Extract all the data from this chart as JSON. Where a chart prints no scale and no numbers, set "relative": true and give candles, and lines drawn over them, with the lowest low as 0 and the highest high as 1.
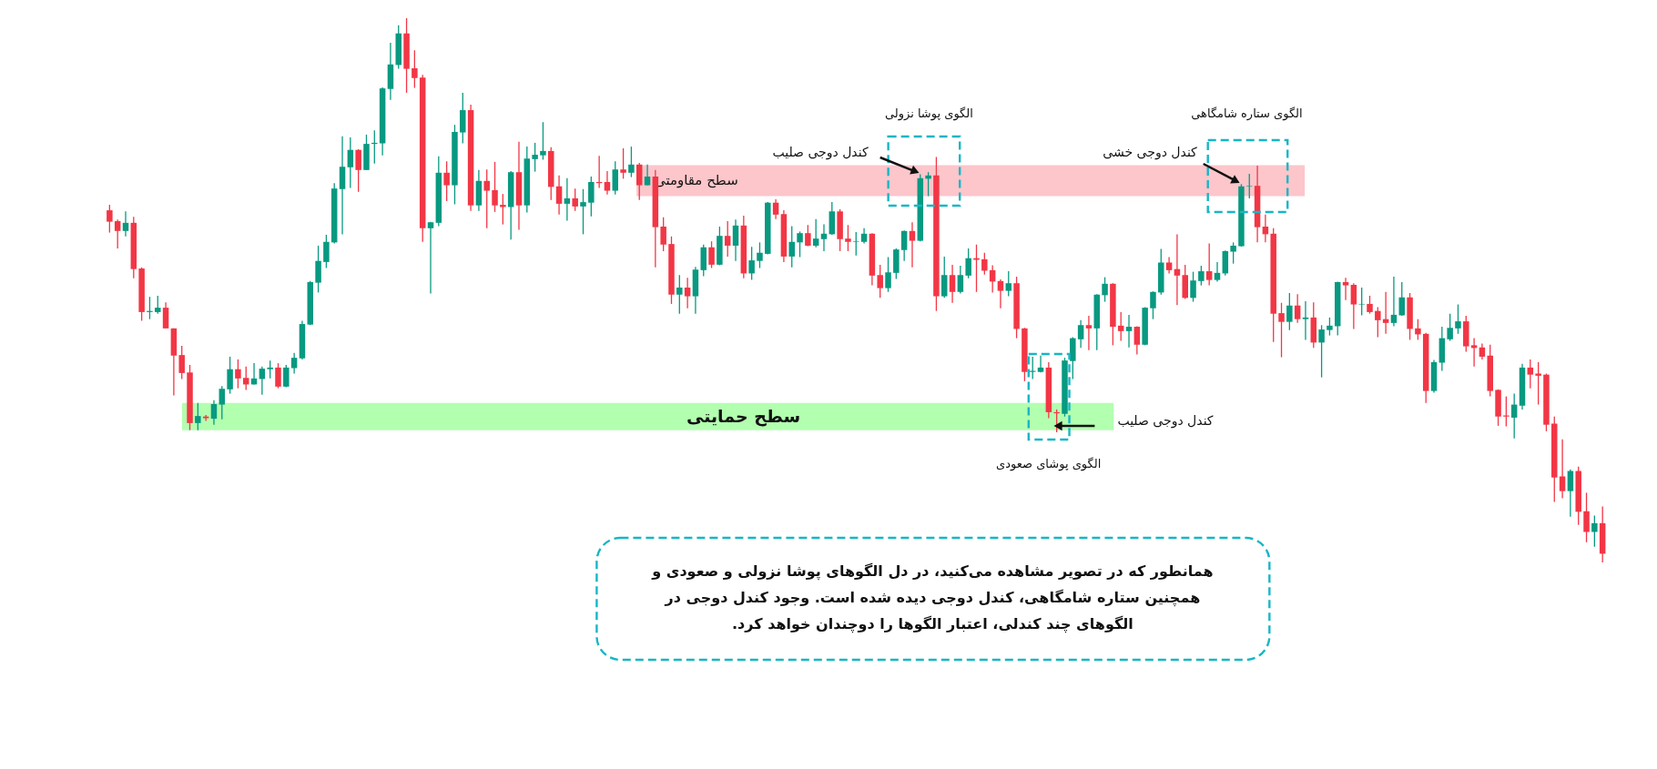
{
  "chart_data": {
    "type": "candlestick",
    "relative": true,
    "categories": [
      null,
      null,
      null,
      null,
      null,
      null,
      null,
      null,
      null,
      null,
      null,
      null,
      null,
      null,
      null,
      null,
      null,
      null,
      null,
      null,
      null,
      null,
      null,
      null,
      null,
      null,
      null,
      null,
      null,
      null,
      null,
      null,
      null,
      null,
      null,
      null,
      null,
      null,
      null,
      null,
      null,
      null,
      null,
      null,
      null,
      null,
      null,
      null,
      null,
      null,
      null,
      null,
      null,
      null,
      null,
      null,
      null,
      null,
      null,
      null,
      null,
      null,
      null,
      null,
      null,
      null,
      null,
      null,
      null,
      null,
      null,
      null,
      null,
      null,
      null,
      null,
      null,
      null,
      null,
      null,
      null,
      null,
      null,
      null,
      null,
      null,
      null,
      null,
      null,
      null,
      null,
      null,
      null,
      null,
      null,
      null,
      null,
      null,
      null,
      null,
      null,
      null,
      null,
      null,
      null,
      null,
      null,
      null,
      null,
      null,
      null,
      null,
      null,
      null,
      null,
      null,
      null,
      null,
      null,
      null,
      null,
      null,
      null,
      null,
      null,
      null,
      null,
      null,
      null,
      null,
      null,
      null,
      null,
      null,
      null,
      null,
      null,
      null,
      null,
      null,
      null,
      null,
      null,
      null,
      null,
      null,
      null,
      null,
      null,
      null,
      null,
      null,
      null,
      null,
      null,
      null,
      null,
      null,
      null,
      null,
      null,
      null,
      null,
      null,
      null,
      null,
      null,
      null,
      null,
      null,
      null,
      null,
      null,
      null,
      null,
      null,
      null,
      null,
      null,
      null,
      null,
      null,
      null,
      null,
      null,
      null,
      null
    ],
    "ohlc": [
      [
        0.647,
        0.657,
        0.606,
        0.626
      ],
      [
        0.627,
        0.63,
        0.577,
        0.609
      ],
      [
        0.609,
        0.645,
        0.599,
        0.624
      ],
      [
        0.624,
        0.635,
        0.522,
        0.539
      ],
      [
        0.54,
        0.542,
        0.444,
        0.46
      ],
      [
        0.46,
        0.488,
        0.447,
        0.462
      ],
      [
        0.46,
        0.49,
        0.457,
        0.468
      ],
      [
        0.468,
        0.478,
        0.43,
        0.43
      ],
      [
        0.43,
        0.43,
        0.307,
        0.38
      ],
      [
        0.381,
        0.398,
        0.337,
        0.348
      ],
      [
        0.349,
        0.363,
        0.243,
        0.256
      ],
      [
        0.256,
        0.293,
        0.243,
        0.269
      ],
      [
        0.268,
        0.271,
        0.26,
        0.265
      ],
      [
        0.264,
        0.298,
        0.253,
        0.291
      ],
      [
        0.29,
        0.324,
        0.263,
        0.319
      ],
      [
        0.318,
        0.378,
        0.31,
        0.355
      ],
      [
        0.355,
        0.373,
        0.32,
        0.338
      ],
      [
        0.339,
        0.36,
        0.317,
        0.327
      ],
      [
        0.327,
        0.366,
        0.327,
        0.338
      ],
      [
        0.337,
        0.36,
        0.308,
        0.356
      ],
      [
        0.355,
        0.371,
        0.338,
        0.358
      ],
      [
        0.358,
        0.366,
        0.32,
        0.323
      ],
      [
        0.323,
        0.363,
        0.322,
        0.358
      ],
      [
        0.357,
        0.385,
        0.347,
        0.376
      ],
      [
        0.375,
        0.444,
        0.373,
        0.438
      ],
      [
        0.437,
        0.517,
        0.436,
        0.515
      ],
      [
        0.514,
        0.582,
        0.496,
        0.554
      ],
      [
        0.552,
        0.602,
        0.541,
        0.589
      ],
      [
        0.588,
        0.697,
        0.586,
        0.687
      ],
      [
        0.686,
        0.783,
        0.603,
        0.727
      ],
      [
        0.726,
        0.781,
        0.688,
        0.758
      ],
      [
        0.758,
        0.759,
        0.681,
        0.721
      ],
      [
        0.721,
        0.786,
        0.721,
        0.769
      ],
      [
        0.769,
        0.794,
        0.733,
        0.771
      ],
      [
        0.77,
        0.873,
        0.748,
        0.871
      ],
      [
        0.87,
        0.955,
        0.85,
        0.915
      ],
      [
        0.914,
        0.987,
        0.907,
        0.972
      ],
      [
        0.972,
        1.0,
        0.863,
        0.907
      ],
      [
        0.908,
        0.941,
        0.872,
        0.89
      ],
      [
        0.891,
        0.896,
        0.589,
        0.614
      ],
      [
        0.614,
        0.626,
        0.494,
        0.625
      ],
      [
        0.624,
        0.746,
        0.618,
        0.716
      ],
      [
        0.716,
        0.737,
        0.664,
        0.693
      ],
      [
        0.693,
        0.804,
        0.658,
        0.791
      ],
      [
        0.79,
        0.863,
        0.77,
        0.831
      ],
      [
        0.831,
        0.841,
        0.646,
        0.656
      ],
      [
        0.656,
        0.721,
        0.646,
        0.701
      ],
      [
        0.701,
        0.722,
        0.614,
        0.683
      ],
      [
        0.684,
        0.736,
        0.644,
        0.656
      ],
      [
        0.657,
        0.677,
        0.621,
        0.653
      ],
      [
        0.653,
        0.719,
        0.593,
        0.717
      ],
      [
        0.717,
        0.773,
        0.611,
        0.656
      ],
      [
        0.656,
        0.764,
        0.643,
        0.742
      ],
      [
        0.741,
        0.771,
        0.718,
        0.749
      ],
      [
        0.748,
        0.809,
        0.74,
        0.756
      ],
      [
        0.756,
        0.763,
        0.666,
        0.69
      ],
      [
        0.691,
        0.711,
        0.639,
        0.659
      ],
      [
        0.659,
        0.706,
        0.628,
        0.669
      ],
      [
        0.669,
        0.687,
        0.646,
        0.654
      ],
      [
        0.654,
        0.686,
        0.603,
        0.662
      ],
      [
        0.661,
        0.709,
        0.636,
        0.699
      ],
      [
        0.699,
        0.747,
        0.688,
        0.697
      ],
      [
        0.699,
        0.719,
        0.676,
        0.683
      ],
      [
        0.683,
        0.737,
        0.676,
        0.722
      ],
      [
        0.722,
        0.761,
        0.705,
        0.716
      ],
      [
        0.716,
        0.764,
        0.708,
        0.731
      ],
      [
        0.731,
        0.734,
        0.666,
        0.693
      ],
      [
        0.693,
        0.731,
        0.693,
        0.709
      ],
      [
        0.709,
        0.721,
        0.542,
        0.616
      ],
      [
        0.617,
        0.634,
        0.572,
        0.584
      ],
      [
        0.585,
        0.599,
        0.475,
        0.492
      ],
      [
        0.492,
        0.528,
        0.457,
        0.505
      ],
      [
        0.505,
        0.523,
        0.467,
        0.489
      ],
      [
        0.489,
        0.543,
        0.457,
        0.538
      ],
      [
        0.537,
        0.584,
        0.526,
        0.579
      ],
      [
        0.579,
        0.59,
        0.541,
        0.547
      ],
      [
        0.547,
        0.617,
        0.546,
        0.6
      ],
      [
        0.6,
        0.627,
        0.562,
        0.582
      ],
      [
        0.582,
        0.63,
        0.554,
        0.619
      ],
      [
        0.619,
        0.637,
        0.522,
        0.531
      ],
      [
        0.531,
        0.58,
        0.519,
        0.555
      ],
      [
        0.554,
        0.588,
        0.541,
        0.569
      ],
      [
        0.567,
        0.662,
        0.566,
        0.661
      ],
      [
        0.661,
        0.667,
        0.631,
        0.639
      ],
      [
        0.64,
        0.647,
        0.552,
        0.562
      ],
      [
        0.562,
        0.618,
        0.542,
        0.589
      ],
      [
        0.588,
        0.608,
        0.561,
        0.605
      ],
      [
        0.605,
        0.62,
        0.581,
        0.582
      ],
      [
        0.582,
        0.631,
        0.579,
        0.595
      ],
      [
        0.594,
        0.621,
        0.572,
        0.604
      ],
      [
        0.603,
        0.662,
        0.602,
        0.645
      ],
      [
        0.645,
        0.649,
        0.572,
        0.594
      ],
      [
        0.595,
        0.62,
        0.572,
        0.589
      ],
      [
        0.589,
        0.607,
        0.564,
        0.59
      ],
      [
        0.589,
        0.614,
        0.586,
        0.604
      ],
      [
        0.604,
        0.605,
        0.509,
        0.527
      ],
      [
        0.528,
        0.547,
        0.486,
        0.504
      ],
      [
        0.504,
        0.561,
        0.497,
        0.533
      ],
      [
        0.532,
        0.577,
        0.521,
        0.575
      ],
      [
        0.574,
        0.61,
        0.554,
        0.609
      ],
      [
        0.609,
        0.625,
        0.542,
        0.591
      ],
      [
        0.591,
        0.713,
        0.59,
        0.706
      ],
      [
        0.705,
        0.717,
        0.673,
        0.711
      ],
      [
        0.711,
        0.745,
        0.462,
        0.489
      ],
      [
        0.489,
        0.562,
        0.486,
        0.528
      ],
      [
        0.528,
        0.547,
        0.477,
        0.497
      ],
      [
        0.497,
        0.545,
        0.494,
        0.528
      ],
      [
        0.527,
        0.577,
        0.522,
        0.559
      ],
      [
        0.559,
        0.584,
        0.497,
        0.556
      ],
      [
        0.557,
        0.569,
        0.529,
        0.536
      ],
      [
        0.537,
        0.546,
        0.496,
        0.516
      ],
      [
        0.517,
        0.52,
        0.467,
        0.499
      ],
      [
        0.499,
        0.535,
        0.489,
        0.513
      ],
      [
        0.513,
        0.525,
        0.412,
        0.429
      ],
      [
        0.43,
        0.431,
        0.333,
        0.35
      ],
      [
        0.35,
        0.378,
        0.337,
        0.352
      ],
      [
        0.35,
        0.38,
        0.349,
        0.358
      ],
      [
        0.358,
        0.368,
        0.265,
        0.276
      ],
      [
        0.276,
        0.281,
        0.239,
        0.274
      ],
      [
        0.273,
        0.376,
        0.268,
        0.371
      ],
      [
        0.37,
        0.414,
        0.337,
        0.412
      ],
      [
        0.41,
        0.445,
        0.394,
        0.436
      ],
      [
        0.436,
        0.453,
        0.39,
        0.43
      ],
      [
        0.43,
        0.493,
        0.39,
        0.492
      ],
      [
        0.491,
        0.524,
        0.479,
        0.512
      ],
      [
        0.512,
        0.513,
        0.399,
        0.433
      ],
      [
        0.435,
        0.46,
        0.407,
        0.425
      ],
      [
        0.425,
        0.455,
        0.395,
        0.433
      ],
      [
        0.433,
        0.434,
        0.382,
        0.4
      ],
      [
        0.4,
        0.469,
        0.399,
        0.468
      ],
      [
        0.467,
        0.498,
        0.447,
        0.497
      ],
      [
        0.496,
        0.576,
        0.492,
        0.551
      ],
      [
        0.551,
        0.561,
        0.531,
        0.537
      ],
      [
        0.539,
        0.603,
        0.473,
        0.527
      ],
      [
        0.528,
        0.547,
        0.484,
        0.486
      ],
      [
        0.486,
        0.534,
        0.479,
        0.518
      ],
      [
        0.517,
        0.545,
        0.509,
        0.535
      ],
      [
        0.535,
        0.586,
        0.509,
        0.519
      ],
      [
        0.519,
        0.552,
        0.516,
        0.532
      ],
      [
        0.531,
        0.573,
        0.527,
        0.572
      ],
      [
        0.571,
        0.588,
        0.549,
        0.582
      ],
      [
        0.581,
        0.695,
        0.58,
        0.691
      ],
      [
        0.691,
        0.714,
        0.669,
        0.692
      ],
      [
        0.692,
        0.729,
        0.588,
        0.616
      ],
      [
        0.617,
        0.639,
        0.588,
        0.603
      ],
      [
        0.604,
        0.614,
        0.405,
        0.457
      ],
      [
        0.458,
        0.477,
        0.377,
        0.442
      ],
      [
        0.442,
        0.495,
        0.427,
        0.472
      ],
      [
        0.472,
        0.493,
        0.44,
        0.447
      ],
      [
        0.447,
        0.48,
        0.409,
        0.45
      ],
      [
        0.45,
        0.478,
        0.394,
        0.404
      ],
      [
        0.404,
        0.436,
        0.34,
        0.428
      ],
      [
        0.427,
        0.45,
        0.417,
        0.435
      ],
      [
        0.434,
        0.516,
        0.417,
        0.515
      ],
      [
        0.515,
        0.523,
        0.482,
        0.509
      ],
      [
        0.51,
        0.513,
        0.429,
        0.474
      ],
      [
        0.474,
        0.505,
        0.454,
        0.475
      ],
      [
        0.475,
        0.49,
        0.457,
        0.46
      ],
      [
        0.462,
        0.469,
        0.414,
        0.445
      ],
      [
        0.447,
        0.497,
        0.42,
        0.44
      ],
      [
        0.44,
        0.525,
        0.434,
        0.455
      ],
      [
        0.454,
        0.515,
        0.453,
        0.487
      ],
      [
        0.487,
        0.495,
        0.409,
        0.429
      ],
      [
        0.43,
        0.447,
        0.409,
        0.419
      ],
      [
        0.42,
        0.422,
        0.293,
        0.315
      ],
      [
        0.315,
        0.372,
        0.312,
        0.368
      ],
      [
        0.367,
        0.433,
        0.352,
        0.412
      ],
      [
        0.41,
        0.457,
        0.407,
        0.431
      ],
      [
        0.43,
        0.474,
        0.42,
        0.443
      ],
      [
        0.443,
        0.453,
        0.387,
        0.397
      ],
      [
        0.399,
        0.412,
        0.36,
        0.394
      ],
      [
        0.395,
        0.402,
        0.373,
        0.378
      ],
      [
        0.38,
        0.4,
        0.305,
        0.315
      ],
      [
        0.317,
        0.318,
        0.251,
        0.268
      ],
      [
        0.27,
        0.305,
        0.25,
        0.268
      ],
      [
        0.266,
        0.31,
        0.228,
        0.29
      ],
      [
        0.288,
        0.365,
        0.281,
        0.358
      ],
      [
        0.358,
        0.373,
        0.32,
        0.345
      ],
      [
        0.347,
        0.368,
        0.29,
        0.343
      ],
      [
        0.345,
        0.347,
        0.241,
        0.253
      ],
      [
        0.255,
        0.268,
        0.111,
        0.156
      ],
      [
        0.158,
        0.226,
        0.118,
        0.131
      ],
      [
        0.131,
        0.171,
        0.084,
        0.168
      ],
      [
        0.168,
        0.176,
        0.069,
        0.093
      ],
      [
        0.094,
        0.128,
        0.037,
        0.056
      ],
      [
        0.056,
        0.086,
        0.029,
        0.072
      ],
      [
        0.072,
        0.103,
        0.0,
        0.016
      ]
    ],
    "colors": [
      "#f23645",
      "#f23645",
      "#089981",
      "#f23645",
      "#f23645",
      "#089981",
      "#089981",
      "#f23645",
      "#f23645",
      "#f23645",
      "#f23645",
      "#089981",
      "#f23645",
      "#089981",
      "#089981",
      "#089981",
      "#f23645",
      "#f23645",
      "#089981",
      "#089981",
      "#089981",
      "#f23645",
      "#089981",
      "#089981",
      "#089981",
      "#089981",
      "#089981",
      "#089981",
      "#089981",
      "#089981",
      "#089981",
      "#f23645",
      "#089981",
      "#089981",
      "#089981",
      "#089981",
      "#089981",
      "#f23645",
      "#f23645",
      "#f23645",
      "#089981",
      "#089981",
      "#f23645",
      "#089981",
      "#089981",
      "#f23645",
      "#089981",
      "#f23645",
      "#f23645",
      "#f23645",
      "#089981",
      "#f23645",
      "#089981",
      "#089981",
      "#089981",
      "#f23645",
      "#f23645",
      "#089981",
      "#f23645",
      "#089981",
      "#089981",
      "#f23645",
      "#f23645",
      "#089981",
      "#f23645",
      "#089981",
      "#f23645",
      "#089981",
      "#f23645",
      "#f23645",
      "#f23645",
      "#089981",
      "#f23645",
      "#089981",
      "#089981",
      "#f23645",
      "#089981",
      "#f23645",
      "#089981",
      "#f23645",
      "#089981",
      "#089981",
      "#089981",
      "#f23645",
      "#f23645",
      "#089981",
      "#089981",
      "#f23645",
      "#089981",
      "#089981",
      "#089981",
      "#f23645",
      "#f23645",
      "#089981",
      "#089981",
      "#f23645",
      "#f23645",
      "#089981",
      "#089981",
      "#089981",
      "#f23645",
      "#089981",
      "#089981",
      "#f23645",
      "#089981",
      "#f23645",
      "#089981",
      "#089981",
      "#f23645",
      "#f23645",
      "#f23645",
      "#f23645",
      "#089981",
      "#f23645",
      "#f23645",
      "#089981",
      "#089981",
      "#f23645",
      "#f23645",
      "#089981",
      "#089981",
      "#089981",
      "#f23645",
      "#089981",
      "#089981",
      "#f23645",
      "#f23645",
      "#089981",
      "#f23645",
      "#089981",
      "#089981",
      "#089981",
      "#f23645",
      "#f23645",
      "#f23645",
      "#089981",
      "#089981",
      "#f23645",
      "#089981",
      "#089981",
      "#089981",
      "#089981",
      "#089981",
      "#f23645",
      "#f23645",
      "#f23645",
      "#f23645",
      "#089981",
      "#f23645",
      "#089981",
      "#f23645",
      "#089981",
      "#089981",
      "#089981",
      "#f23645",
      "#f23645",
      "#089981",
      "#f23645",
      "#f23645",
      "#f23645",
      "#089981",
      "#089981",
      "#f23645",
      "#f23645",
      "#f23645",
      "#089981",
      "#089981",
      "#089981",
      "#089981",
      "#f23645",
      "#f23645",
      "#f23645",
      "#f23645",
      "#f23645",
      "#f23645",
      "#089981",
      "#089981",
      "#f23645",
      "#f23645",
      "#f23645",
      "#f23645",
      "#f23645",
      "#089981",
      "#f23645",
      "#f23645",
      "#089981",
      "#f23645"
    ],
    "bands": [
      {
        "axis": "y",
        "from": 0.673,
        "to": 0.73,
        "label": "سطح مقاومتی",
        "color": "#fcc6cb"
      },
      {
        "axis": "y",
        "from": 0.243,
        "to": 0.293,
        "label": "سطح حمایتی",
        "color": "#b3ffb0"
      }
    ],
    "annotations": [
      "الگوی پوشا نزولی",
      "کندل دوجی صلیب",
      "الگوی ستاره شامگاهی",
      "کندل دوجی خشی",
      "کندل دوجی صلیب",
      "الگوی پوشای صعودی",
      "همانطور که در تصویر مشاهده می‌کنید، در دل الگوهای پوشا نزولی و صعودی و\nهمچنین ستاره شامگاهی، کندل دوجی دیده شده است. وجود کندل دوجی در\nالگوهای چند کندلی، اعتبار الگوها را دوچندان خواهد کرد."
    ]
  }
}
